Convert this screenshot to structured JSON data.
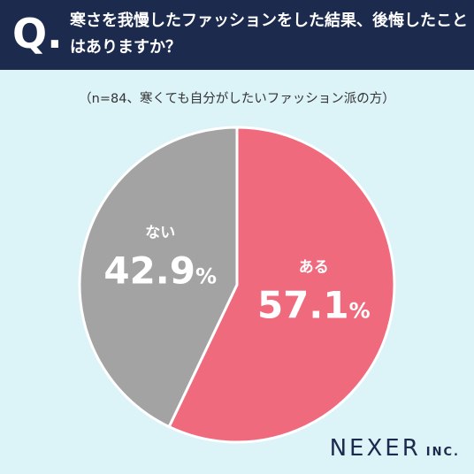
{
  "header": {
    "q_mark": "Q.",
    "question": "寒さを我慢したファッションをした結果、後悔したことはありますか？"
  },
  "subtitle": "（n=84、寒くても自分がしたいファッション派の方）",
  "chart_data": {
    "type": "pie",
    "slices": [
      {
        "label": "ある",
        "value": 57.1,
        "display": "57.1%",
        "color": "#f06a7e"
      },
      {
        "label": "ない",
        "value": 42.9,
        "display": "42.9%",
        "color": "#a3a3a3"
      }
    ],
    "unit": "%",
    "start": "12 o'clock, clockwise"
  },
  "logo": {
    "main": "NEXER",
    "sub": "INC."
  },
  "colors": {
    "header_bg": "#1c2a4e",
    "background": "#dcf3f8"
  }
}
